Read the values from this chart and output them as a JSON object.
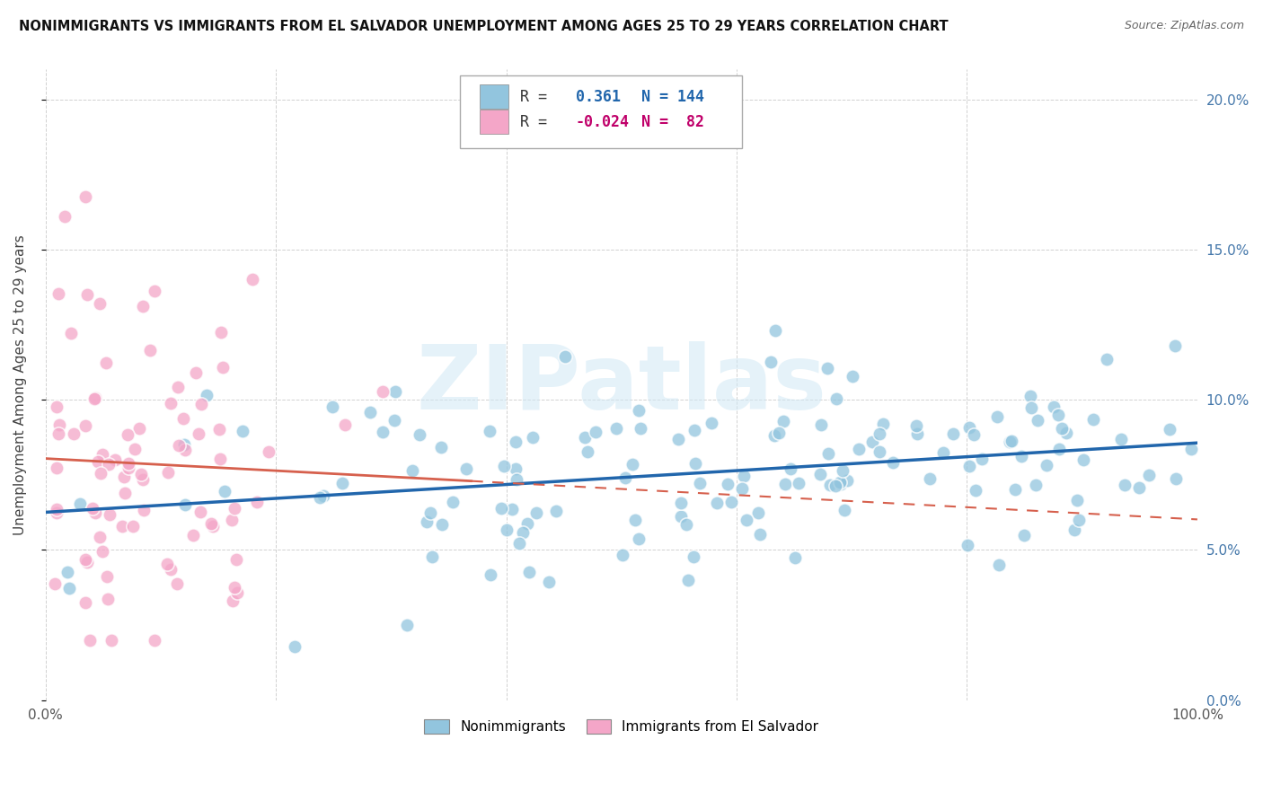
{
  "title": "NONIMMIGRANTS VS IMMIGRANTS FROM EL SALVADOR UNEMPLOYMENT AMONG AGES 25 TO 29 YEARS CORRELATION CHART",
  "source": "Source: ZipAtlas.com",
  "ylabel": "Unemployment Among Ages 25 to 29 years",
  "xlim": [
    0.0,
    1.0
  ],
  "ylim": [
    0.0,
    0.21
  ],
  "x_ticks": [
    0.0,
    0.2,
    0.4,
    0.6,
    0.8,
    1.0
  ],
  "x_tick_labels": [
    "0.0%",
    "",
    "",
    "",
    "",
    "100.0%"
  ],
  "y_ticks": [
    0.0,
    0.05,
    0.1,
    0.15,
    0.2
  ],
  "y_tick_labels_right": [
    "0.0%",
    "5.0%",
    "10.0%",
    "15.0%",
    "20.0%"
  ],
  "nonimmigrant_color": "#92c5de",
  "immigrant_color": "#f4a6c8",
  "nonimmigrant_R": 0.361,
  "nonimmigrant_N": 144,
  "immigrant_R": -0.024,
  "immigrant_N": 82,
  "nonimmigrant_trend_color": "#2166ac",
  "immigrant_trend_color": "#d6604d",
  "watermark_text": "ZIPatlas",
  "background_color": "#ffffff",
  "grid_color": "#cccccc",
  "legend_R_color": "#333333",
  "legend_blue_val_color": "#2166ac",
  "legend_pink_val_color": "#c0006a"
}
